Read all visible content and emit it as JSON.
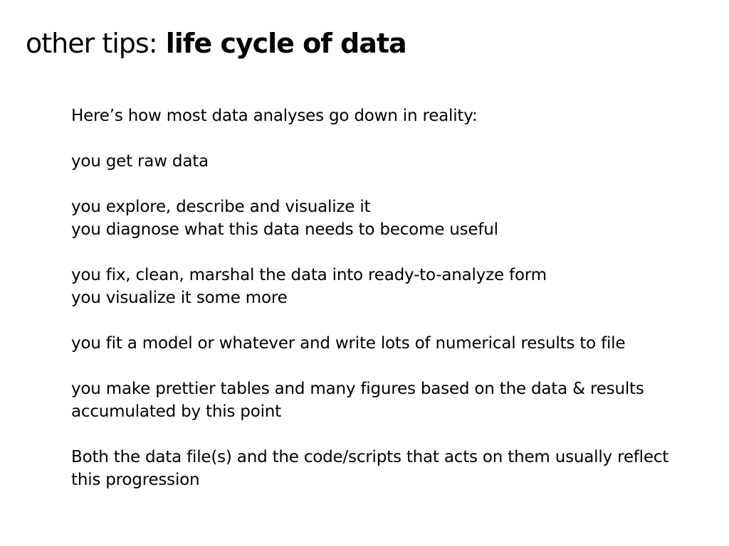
{
  "slide": {
    "title": {
      "prefix": "other tips:",
      "emphasis": "life cycle of data"
    },
    "paragraphs": [
      [
        "Here’s how most data analyses go down in reality:"
      ],
      [
        "you get raw data"
      ],
      [
        "you explore, describe and visualize it",
        "you diagnose what this data needs to become useful"
      ],
      [
        "you fix, clean, marshal the data into ready-to-analyze form",
        "you visualize it some more"
      ],
      [
        "you fit a model or whatever and write lots of numerical results to file"
      ],
      [
        "you make prettier tables and many figures based on the data & results",
        "accumulated by this point"
      ],
      [
        "Both the data file(s) and the code/scripts that acts on them usually reflect",
        "this progression"
      ]
    ]
  }
}
